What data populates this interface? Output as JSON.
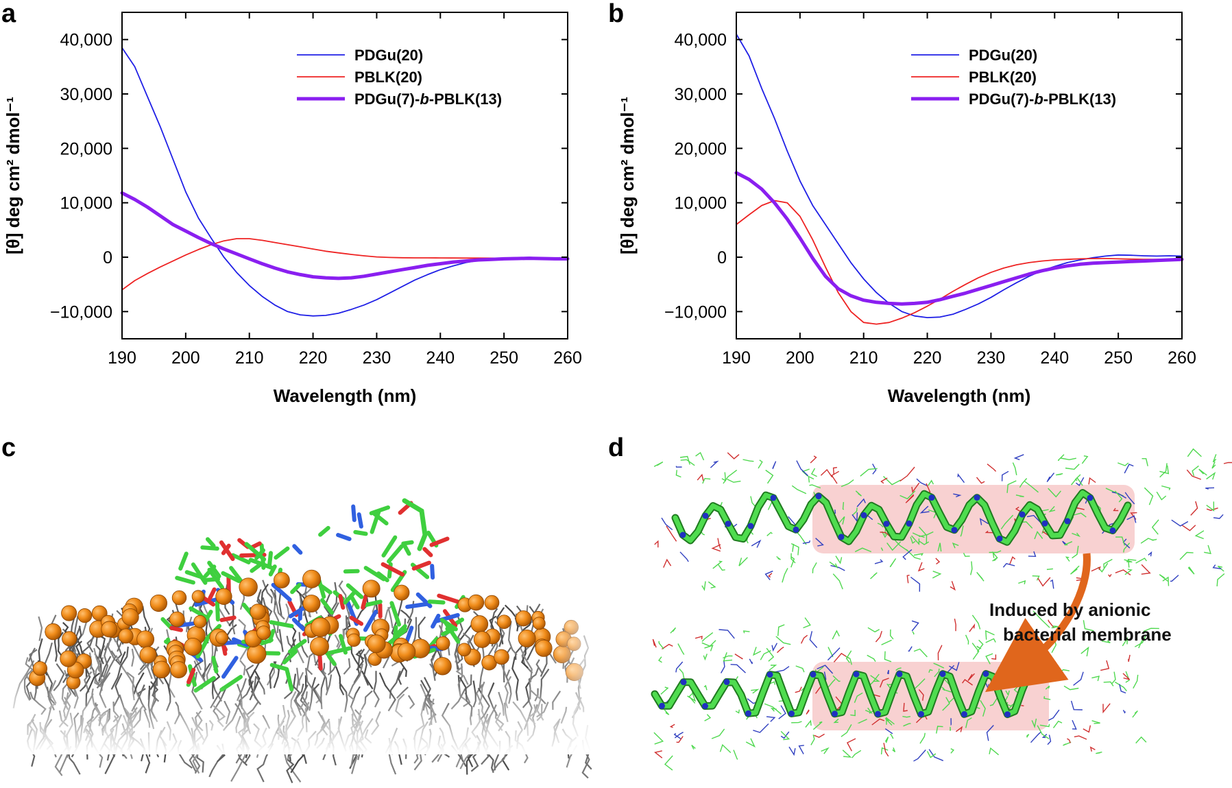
{
  "panels": {
    "a": "a",
    "b": "b",
    "c": "c",
    "d": "d"
  },
  "annotation": {
    "line1": "Induced by anionic",
    "line2": "bacterial membrane"
  },
  "chart_data": [
    {
      "type": "line",
      "panel": "a",
      "title": "",
      "xlabel": "Wavelength (nm)",
      "ylabel": "[θ] deg cm² dmol⁻¹",
      "xlim": [
        190,
        260
      ],
      "ylim": [
        -15000,
        45000
      ],
      "xticks": [
        190,
        200,
        210,
        220,
        230,
        240,
        250,
        260
      ],
      "xtick_labels": [
        "190",
        "200",
        "210",
        "220",
        "230",
        "240",
        "250",
        "260"
      ],
      "yticks": [
        -10000,
        0,
        10000,
        20000,
        30000,
        40000
      ],
      "ytick_labels": [
        "−10,000",
        "0",
        "10,000",
        "20,000",
        "30,000",
        "40,000"
      ],
      "legend_position": "top-right",
      "series": [
        {
          "name": "PDGu(20)",
          "color": "#1f1fe6",
          "width": "thin",
          "x": [
            190,
            192,
            194,
            196,
            198,
            200,
            202,
            204,
            206,
            208,
            210,
            212,
            214,
            216,
            218,
            220,
            222,
            224,
            226,
            228,
            230,
            232,
            234,
            236,
            238,
            240,
            242,
            244,
            246,
            248,
            250,
            252,
            254,
            256,
            258,
            260
          ],
          "y": [
            38500,
            35000,
            29500,
            24000,
            18000,
            12000,
            7200,
            3500,
            0,
            -2800,
            -5200,
            -7200,
            -8800,
            -10000,
            -10600,
            -10800,
            -10700,
            -10300,
            -9600,
            -8800,
            -7800,
            -6600,
            -5400,
            -4200,
            -3200,
            -2300,
            -1600,
            -1000,
            -600,
            -300,
            -150,
            -80,
            -30,
            -150,
            -250,
            -300
          ]
        },
        {
          "name": "PBLK(20)",
          "color": "#ee2222",
          "width": "thin",
          "x": [
            190,
            192,
            194,
            196,
            198,
            200,
            202,
            204,
            206,
            208,
            210,
            212,
            214,
            216,
            218,
            220,
            222,
            224,
            226,
            228,
            230,
            232,
            234,
            236,
            238,
            240,
            242,
            244,
            246,
            248,
            250,
            252,
            254,
            256,
            258,
            260
          ],
          "y": [
            -6000,
            -4300,
            -3000,
            -1800,
            -700,
            400,
            1400,
            2300,
            3000,
            3400,
            3400,
            3100,
            2700,
            2300,
            1900,
            1500,
            1100,
            800,
            500,
            250,
            50,
            -50,
            -100,
            -120,
            -130,
            -140,
            -150,
            -160,
            -170,
            -180,
            -190,
            -200,
            -210,
            -220,
            -230,
            -240
          ]
        },
        {
          "name": "PDGu(7)-b-PBLK(13)",
          "color": "#8a1ff0",
          "width": "thick",
          "x": [
            190,
            192,
            194,
            196,
            198,
            200,
            202,
            204,
            206,
            208,
            210,
            212,
            214,
            216,
            218,
            220,
            222,
            224,
            226,
            228,
            230,
            232,
            234,
            236,
            238,
            240,
            242,
            244,
            246,
            248,
            250,
            252,
            254,
            256,
            258,
            260
          ],
          "y": [
            11800,
            10600,
            9200,
            7600,
            6000,
            4800,
            3600,
            2500,
            1500,
            600,
            -300,
            -1200,
            -2000,
            -2700,
            -3200,
            -3600,
            -3800,
            -3900,
            -3800,
            -3500,
            -3100,
            -2700,
            -2300,
            -1900,
            -1500,
            -1200,
            -900,
            -700,
            -500,
            -400,
            -300,
            -250,
            -200,
            -250,
            -300,
            -300
          ]
        }
      ],
      "legend_labels": [
        {
          "pre": "PDGu(20)",
          "italic": "",
          "post": ""
        },
        {
          "pre": "PBLK(20)",
          "italic": "",
          "post": ""
        },
        {
          "pre": "PDGu(7)-",
          "italic": "b",
          "post": "-PBLK(13)"
        }
      ]
    },
    {
      "type": "line",
      "panel": "b",
      "title": "",
      "xlabel": "Wavelength (nm)",
      "ylabel": "[θ] deg cm² dmol⁻¹",
      "xlim": [
        190,
        260
      ],
      "ylim": [
        -15000,
        45000
      ],
      "xticks": [
        190,
        200,
        210,
        220,
        230,
        240,
        250,
        260
      ],
      "xtick_labels": [
        "190",
        "200",
        "210",
        "220",
        "230",
        "240",
        "250",
        "260"
      ],
      "yticks": [
        -10000,
        0,
        10000,
        20000,
        30000,
        40000
      ],
      "ytick_labels": [
        "−10,000",
        "0",
        "10,000",
        "20,000",
        "30,000",
        "40,000"
      ],
      "legend_position": "top-right",
      "series": [
        {
          "name": "PDGu(20)",
          "color": "#1f1fe6",
          "width": "thin",
          "x": [
            190,
            192,
            194,
            196,
            198,
            200,
            202,
            204,
            206,
            208,
            210,
            212,
            214,
            216,
            218,
            220,
            222,
            224,
            226,
            228,
            230,
            232,
            234,
            236,
            238,
            240,
            242,
            244,
            246,
            248,
            250,
            252,
            254,
            256,
            258,
            260
          ],
          "y": [
            41000,
            37000,
            31000,
            25500,
            19500,
            14000,
            9500,
            6000,
            2500,
            -1000,
            -4000,
            -6500,
            -8500,
            -10000,
            -10800,
            -11100,
            -11000,
            -10500,
            -9600,
            -8600,
            -7400,
            -6000,
            -4700,
            -3500,
            -2500,
            -1700,
            -1000,
            -500,
            -100,
            200,
            400,
            350,
            250,
            200,
            250,
            200
          ]
        },
        {
          "name": "PBLK(20)",
          "color": "#ee2222",
          "width": "thin",
          "x": [
            190,
            192,
            194,
            196,
            198,
            200,
            202,
            204,
            206,
            208,
            210,
            212,
            214,
            216,
            218,
            220,
            222,
            224,
            226,
            228,
            230,
            232,
            234,
            236,
            238,
            240,
            242,
            244,
            246,
            248,
            250,
            252,
            254,
            256,
            258,
            260
          ],
          "y": [
            6000,
            7800,
            9500,
            10400,
            10000,
            7500,
            3200,
            -1800,
            -6500,
            -10000,
            -12000,
            -12300,
            -12000,
            -11200,
            -10200,
            -9000,
            -7700,
            -6300,
            -5000,
            -3800,
            -2800,
            -2000,
            -1400,
            -1000,
            -700,
            -500,
            -400,
            -300,
            -250,
            -250,
            -300,
            -350,
            -400,
            -400,
            -400,
            -400
          ]
        },
        {
          "name": "PDGu(7)-b-PBLK(13)",
          "color": "#8a1ff0",
          "width": "thick",
          "x": [
            190,
            192,
            194,
            196,
            198,
            200,
            202,
            204,
            206,
            208,
            210,
            212,
            214,
            216,
            218,
            220,
            222,
            224,
            226,
            228,
            230,
            232,
            234,
            236,
            238,
            240,
            242,
            244,
            246,
            248,
            250,
            252,
            254,
            256,
            258,
            260
          ],
          "y": [
            15500,
            14300,
            12500,
            10000,
            7000,
            3500,
            -200,
            -3500,
            -5800,
            -7100,
            -7900,
            -8300,
            -8500,
            -8600,
            -8500,
            -8300,
            -7800,
            -7200,
            -6600,
            -5900,
            -5200,
            -4500,
            -3800,
            -3100,
            -2500,
            -2000,
            -1600,
            -1300,
            -1100,
            -1000,
            -900,
            -800,
            -700,
            -600,
            -500,
            -400
          ]
        }
      ],
      "legend_labels": [
        {
          "pre": "PDGu(20)",
          "italic": "",
          "post": ""
        },
        {
          "pre": "PBLK(20)",
          "italic": "",
          "post": ""
        },
        {
          "pre": "PDGu(7)-",
          "italic": "b",
          "post": "-PBLK(13)"
        }
      ]
    }
  ]
}
